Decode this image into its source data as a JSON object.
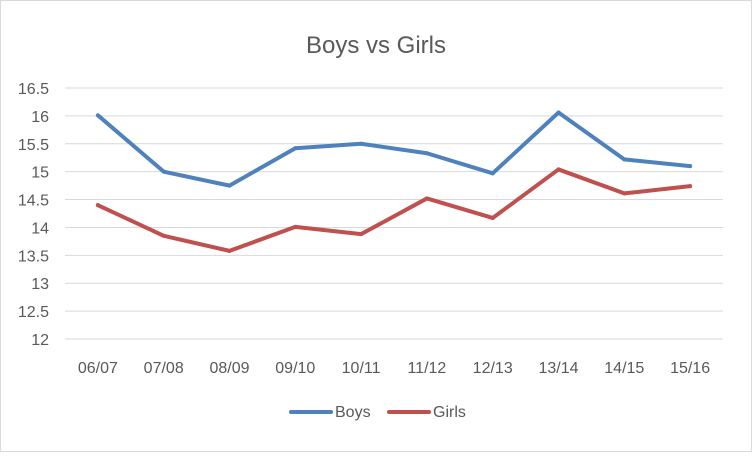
{
  "chart_data": {
    "type": "line",
    "title": "Boys vs Girls",
    "xlabel": "",
    "ylabel": "",
    "categories": [
      "06/07",
      "07/08",
      "08/09",
      "09/10",
      "10/11",
      "11/12",
      "12/13",
      "13/14",
      "14/15",
      "15/16"
    ],
    "ylim": [
      12,
      16.5
    ],
    "yticks": [
      "12",
      "12.5",
      "13",
      "13.5",
      "14",
      "14.5",
      "15",
      "15.5",
      "16",
      "16.5"
    ],
    "grid": true,
    "legend_position": "bottom",
    "series": [
      {
        "name": "Boys",
        "color": "#4f81bd",
        "values": [
          16.01,
          15.0,
          14.75,
          15.42,
          15.5,
          15.33,
          14.97,
          16.06,
          15.22,
          15.1
        ]
      },
      {
        "name": "Girls",
        "color": "#c0504d",
        "values": [
          14.4,
          13.85,
          13.58,
          14.01,
          13.88,
          14.52,
          14.17,
          15.04,
          14.61,
          14.74
        ]
      }
    ]
  }
}
